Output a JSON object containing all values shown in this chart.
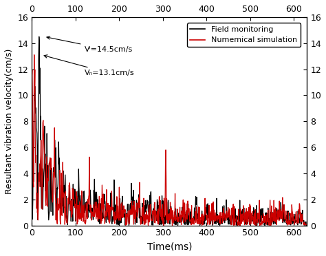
{
  "xlabel": "Time(ms)",
  "ylabel": "Resultant vibration velocity(cm/s)",
  "xlim": [
    0,
    630
  ],
  "ylim": [
    0,
    16
  ],
  "yticks": [
    0,
    2,
    4,
    6,
    8,
    10,
    12,
    14,
    16
  ],
  "xticks": [
    0,
    100,
    200,
    300,
    400,
    500,
    600
  ],
  "field_color": "#000000",
  "sim_color": "#cc0000",
  "legend_field": "Field monitoring",
  "legend_sim": "Numemical simulation",
  "annot_vf": "Vⁱ=14.5cm/s",
  "annot_vn": "Vₙ=13.1cm/s",
  "linewidth": 0.9
}
